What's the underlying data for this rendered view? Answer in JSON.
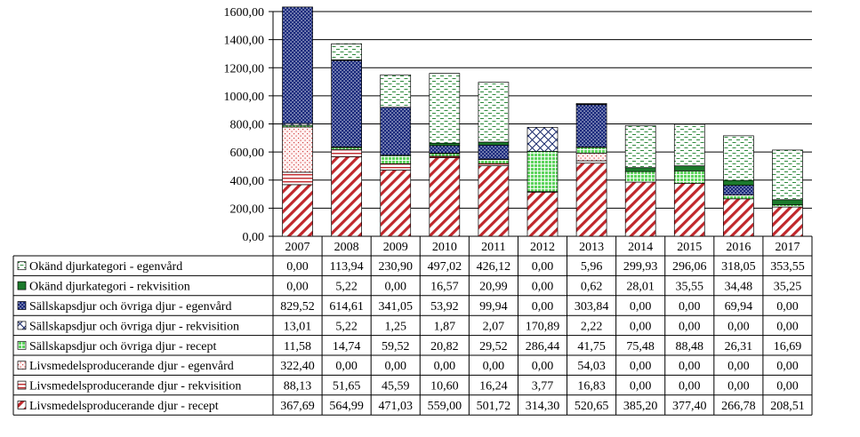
{
  "chart_data": {
    "type": "bar",
    "stacked": true,
    "title": "",
    "xlabel": "",
    "ylabel": "",
    "ylim": [
      0,
      1600
    ],
    "yticks": [
      "0,00",
      "200,00",
      "400,00",
      "600,00",
      "800,00",
      "1000,00",
      "1200,00",
      "1400,00",
      "1600,00"
    ],
    "grid": true,
    "legend": "table-below",
    "categories": [
      "2007",
      "2008",
      "2009",
      "2010",
      "2011",
      "2012",
      "2013",
      "2014",
      "2015",
      "2016",
      "2017"
    ],
    "series": [
      {
        "name": "Livsmedelsproducerande djur - recept",
        "pattern": "diag-stripes-red",
        "color": "#c0282c",
        "values": [
          367.69,
          564.99,
          471.03,
          559.0,
          501.72,
          314.3,
          520.65,
          385.2,
          377.4,
          266.78,
          208.51
        ],
        "labels": [
          "367,69",
          "564,99",
          "471,03",
          "559,00",
          "501,72",
          "314,30",
          "520,65",
          "385,20",
          "377,40",
          "266,78",
          "208,51"
        ]
      },
      {
        "name": "Livsmedelsproducerande djur - rekvisition",
        "pattern": "horiz-lines-red",
        "color": "#d04040",
        "values": [
          88.13,
          51.65,
          45.59,
          10.6,
          16.24,
          3.77,
          16.83,
          0.0,
          0.0,
          0.0,
          0.0
        ],
        "labels": [
          "88,13",
          "51,65",
          "45,59",
          "10,60",
          "16,24",
          "3,77",
          "16,83",
          "0,00",
          "0,00",
          "0,00",
          "0,00"
        ]
      },
      {
        "name": "Livsmedelsproducerande djur - egenvård",
        "pattern": "dots-red",
        "color": "#e06060",
        "values": [
          322.4,
          0.0,
          0.0,
          0.0,
          0.0,
          0.0,
          54.03,
          0.0,
          0.0,
          0.0,
          0.0
        ],
        "labels": [
          "322,40",
          "0,00",
          "0,00",
          "0,00",
          "0,00",
          "0,00",
          "54,03",
          "0,00",
          "0,00",
          "0,00",
          "0,00"
        ]
      },
      {
        "name": "Sällskapsdjur och övriga djur - recept",
        "pattern": "grid-green",
        "color": "#3cbc3c",
        "values": [
          11.58,
          14.74,
          59.52,
          20.82,
          29.52,
          286.44,
          41.75,
          75.48,
          88.48,
          26.31,
          16.69
        ],
        "labels": [
          "11,58",
          "14,74",
          "59,52",
          "20,82",
          "29,52",
          "286,44",
          "41,75",
          "75,48",
          "88,48",
          "26,31",
          "16,69"
        ]
      },
      {
        "name": "Sällskapsdjur och övriga djur - rekvisition",
        "pattern": "crosshatch-navy",
        "color": "#1a2a6c",
        "values": [
          13.01,
          5.22,
          1.25,
          1.87,
          2.07,
          170.89,
          2.22,
          0.0,
          0.0,
          0.0,
          0.0
        ],
        "labels": [
          "13,01",
          "5,22",
          "1,25",
          "1,87",
          "2,07",
          "170,89",
          "2,22",
          "0,00",
          "0,00",
          "0,00",
          "0,00"
        ]
      },
      {
        "name": "Sällskapsdjur och övriga djur - egenvård",
        "pattern": "dots-navy",
        "color": "#1a2a7c",
        "values": [
          829.52,
          614.61,
          341.05,
          53.92,
          99.94,
          0.0,
          303.84,
          0.0,
          0.0,
          69.94,
          0.0
        ],
        "labels": [
          "829,52",
          "614,61",
          "341,05",
          "53,92",
          "99,94",
          "0,00",
          "303,84",
          "0,00",
          "0,00",
          "69,94",
          "0,00"
        ]
      },
      {
        "name": "Okänd djurkategori - rekvisition",
        "pattern": "solid-green",
        "color": "#1c7a2c",
        "values": [
          0.0,
          5.22,
          0.0,
          16.57,
          20.99,
          0.0,
          0.62,
          28.01,
          35.55,
          34.48,
          35.25
        ],
        "labels": [
          "0,00",
          "5,22",
          "0,00",
          "16,57",
          "20,99",
          "0,00",
          "0,62",
          "28,01",
          "35,55",
          "34,48",
          "35,25"
        ]
      },
      {
        "name": "Okänd djurkategori - egenvård",
        "pattern": "dashes-green",
        "color": "#2e8a3c",
        "values": [
          0.0,
          113.94,
          230.9,
          497.02,
          426.12,
          0.0,
          5.96,
          299.93,
          296.06,
          318.05,
          353.55
        ],
        "labels": [
          "0,00",
          "113,94",
          "230,90",
          "497,02",
          "426,12",
          "0,00",
          "5,96",
          "299,93",
          "296,06",
          "318,05",
          "353,55"
        ]
      }
    ]
  }
}
